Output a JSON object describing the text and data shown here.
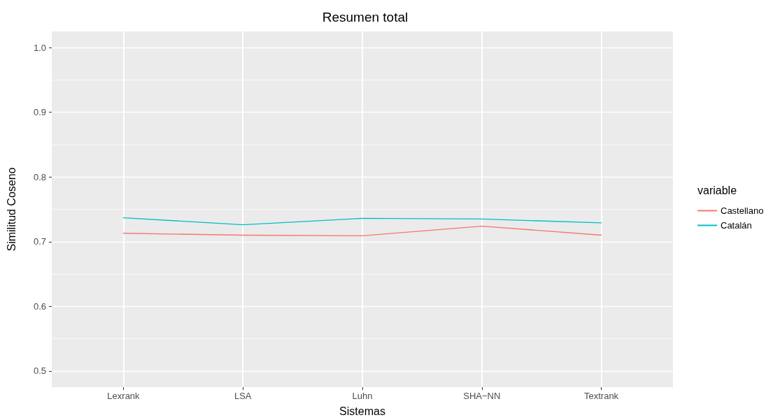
{
  "chart_data": {
    "type": "line",
    "title": "Resumen total",
    "xlabel": "Sistemas",
    "ylabel": "Similitud Coseno",
    "legend_title": "variable",
    "categories": [
      "Lexrank",
      "LSA",
      "Luhn",
      "SHA−NN",
      "Textrank"
    ],
    "series": [
      {
        "name": "Castellano",
        "color": "#f8766d",
        "values": [
          0.713,
          0.71,
          0.709,
          0.724,
          0.71
        ]
      },
      {
        "name": "Catalán",
        "color": "#00bfc4",
        "values": [
          0.737,
          0.726,
          0.736,
          0.735,
          0.729
        ]
      }
    ],
    "ylim": [
      0.475,
      1.025
    ],
    "yticks": [
      0.5,
      0.6,
      0.7,
      0.8,
      0.9,
      {
        "value": 1,
        "label": "1.0"
      }
    ],
    "grid": true,
    "legend": "right",
    "marker": "none",
    "line_style": "solid"
  }
}
